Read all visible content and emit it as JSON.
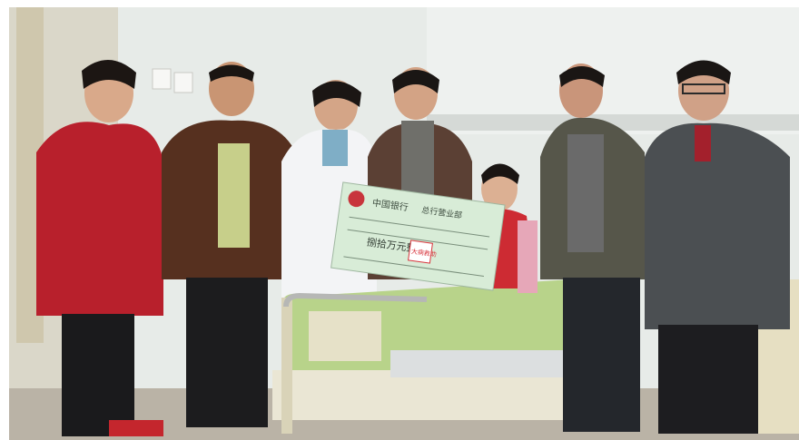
{
  "photo": {
    "colors": {
      "wall": "#e8ece8",
      "floor": "#b8b1a4",
      "blanket": "#b8d38a",
      "cheque": "#d9ecd8",
      "stamp": "#d8353d",
      "coat_red": "#b91f2a",
      "coat_brown": "#5a3326",
      "doctor_coat": "#f4f5f6",
      "jacket_grey": "#4b4f52",
      "jacket_olive": "#545446"
    },
    "cheque": {
      "bank_text": "中国银行",
      "branch_text": "总行营业部",
      "amount_text": "捌拾万元整",
      "stamp_text": "大病救助"
    }
  }
}
